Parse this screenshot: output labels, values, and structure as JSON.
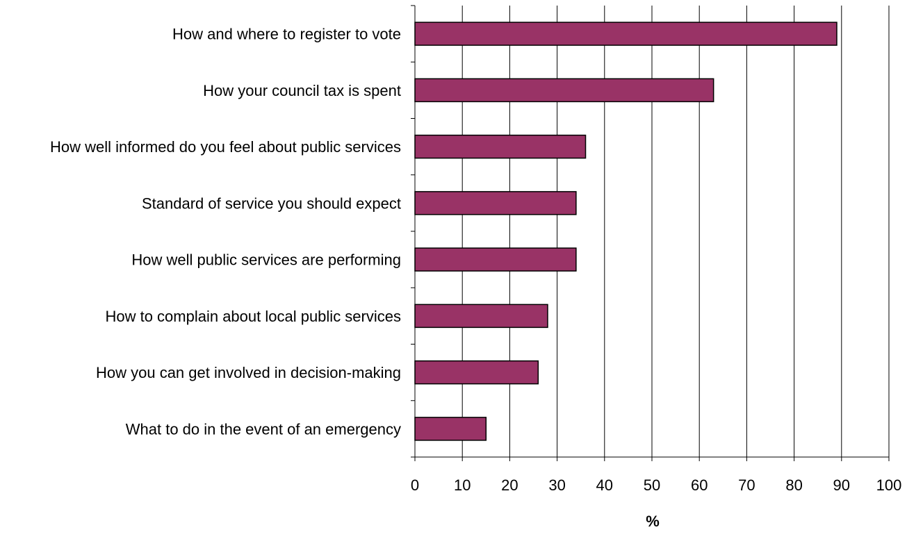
{
  "chart_data": {
    "type": "bar",
    "orientation": "horizontal",
    "categories": [
      "How and where to register to vote",
      "How your council tax is spent",
      "How well informed do you feel about public services",
      "Standard of service you should expect",
      "How well public services are performing",
      "How to complain about local public services",
      "How you can get involved in decision-making",
      "What to do in the event of an emergency"
    ],
    "values": [
      89,
      63,
      36,
      34,
      34,
      28,
      26,
      15
    ],
    "xlabel": "%",
    "ylabel": "",
    "xlim": [
      0,
      100
    ],
    "x_ticks": [
      "0",
      "10",
      "20",
      "30",
      "40",
      "50",
      "60",
      "70",
      "80",
      "90",
      "100"
    ],
    "grid": "vertical",
    "bar_color": "#993366",
    "bar_edge_color": "#000000"
  }
}
